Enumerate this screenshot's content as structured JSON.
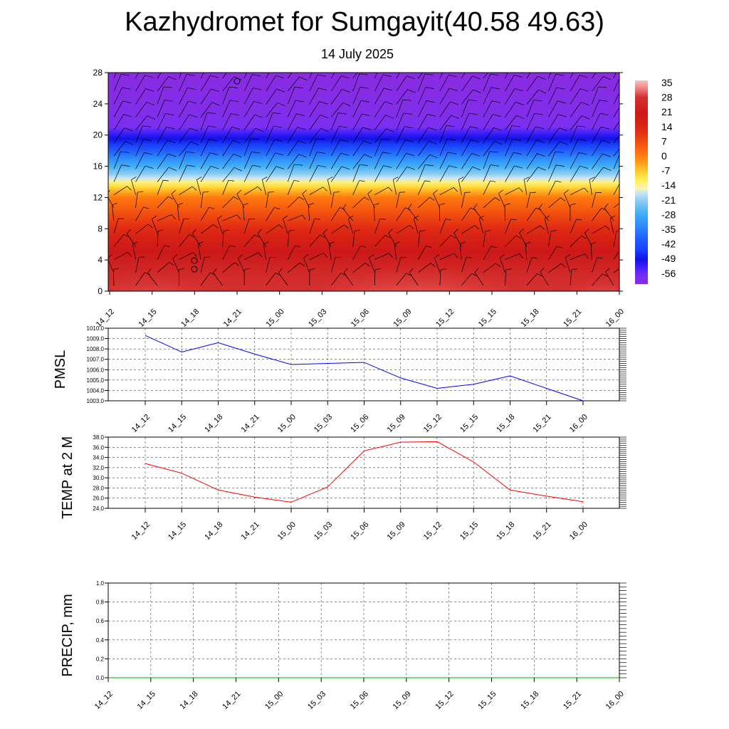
{
  "title": "Kazhydromet for Sumgayit(40.58 49.63)",
  "subtitle": "14 July 2025",
  "time_labels": [
    "14_12",
    "14_15",
    "14_18",
    "14_21",
    "15_00",
    "15_03",
    "15_06",
    "15_09",
    "15_12",
    "15_15",
    "15_18",
    "15_21",
    "16_00"
  ],
  "colors": {
    "pmsl_line": "#0000ff",
    "temp_line": "#ff0000",
    "precip_line": "#00aa00",
    "grid": "#333333"
  },
  "chart_data": [
    {
      "type": "heatmap",
      "name": "cross-section",
      "x": [
        "14_12",
        "14_15",
        "14_18",
        "14_21",
        "15_00",
        "15_03",
        "15_06",
        "15_09",
        "15_12",
        "15_15",
        "15_18",
        "15_21",
        "16_00"
      ],
      "ylim": [
        0,
        28
      ],
      "yticks": [
        0,
        4,
        8,
        12,
        16,
        20,
        24,
        28
      ],
      "colorbar_labels": [
        "35",
        "28",
        "21",
        "14",
        "7",
        "0",
        "-7",
        "-14",
        "-21",
        "-28",
        "-35",
        "-42",
        "-49",
        "-56"
      ],
      "colorbar_range": [
        -60,
        38
      ],
      "temperature_profile": [
        {
          "level": 0,
          "value": 30
        },
        {
          "level": 2,
          "value": 28
        },
        {
          "level": 4,
          "value": 24
        },
        {
          "level": 6,
          "value": 20
        },
        {
          "level": 8,
          "value": 14
        },
        {
          "level": 10,
          "value": 8
        },
        {
          "level": 12,
          "value": 2
        },
        {
          "level": 13.5,
          "value": -8
        },
        {
          "level": 15,
          "value": -20
        },
        {
          "level": 17,
          "value": -32
        },
        {
          "level": 19,
          "value": -45
        },
        {
          "level": 21,
          "value": -56
        },
        {
          "level": 23,
          "value": -58
        },
        {
          "level": 28,
          "value": -60
        }
      ]
    },
    {
      "type": "line",
      "ylabel": "PMSL",
      "ylim": [
        1003.0,
        1010.0
      ],
      "yticks": [
        "1003.0",
        "1004.0",
        "1005.0",
        "1006.0",
        "1007.0",
        "1008.0",
        "1009.0",
        "1010.0"
      ],
      "x": [
        "14_12",
        "14_15",
        "14_18",
        "14_21",
        "15_00",
        "15_03",
        "15_06",
        "15_09",
        "15_12",
        "15_15",
        "15_18",
        "15_21",
        "16_00"
      ],
      "series": [
        {
          "values": [
            1009.3,
            1007.7,
            1008.6,
            1007.5,
            1006.5,
            1006.6,
            1006.7,
            1005.2,
            1004.2,
            1004.6,
            1005.4,
            1004.2,
            1003.0
          ]
        }
      ]
    },
    {
      "type": "line",
      "ylabel": "TEMP at 2 M",
      "ylim": [
        24.0,
        38.0
      ],
      "yticks": [
        "24.0",
        "26.0",
        "28.0",
        "30.0",
        "32.0",
        "34.0",
        "36.0",
        "38.0"
      ],
      "x": [
        "14_12",
        "14_15",
        "14_18",
        "14_21",
        "15_00",
        "15_03",
        "15_06",
        "15_09",
        "15_12",
        "15_15",
        "15_18",
        "15_21",
        "16_00"
      ],
      "series": [
        {
          "values": [
            32.8,
            30.9,
            27.6,
            26.2,
            25.2,
            28.2,
            35.3,
            37.0,
            37.1,
            33.1,
            27.6,
            26.4,
            25.3
          ]
        }
      ]
    },
    {
      "type": "line",
      "ylabel": "PRECIP, mm",
      "ylim": [
        0.0,
        1.0
      ],
      "yticks": [
        "0.0",
        "0.2",
        "0.4",
        "0.6",
        "0.8",
        "1.0"
      ],
      "x": [
        "14_12",
        "14_15",
        "14_18",
        "14_21",
        "15_00",
        "15_03",
        "15_06",
        "15_09",
        "15_12",
        "15_15",
        "15_18",
        "15_21",
        "16_00"
      ],
      "series": [
        {
          "values": [
            0,
            0,
            0,
            0,
            0,
            0,
            0,
            0,
            0,
            0,
            0,
            0,
            0
          ]
        }
      ]
    }
  ]
}
